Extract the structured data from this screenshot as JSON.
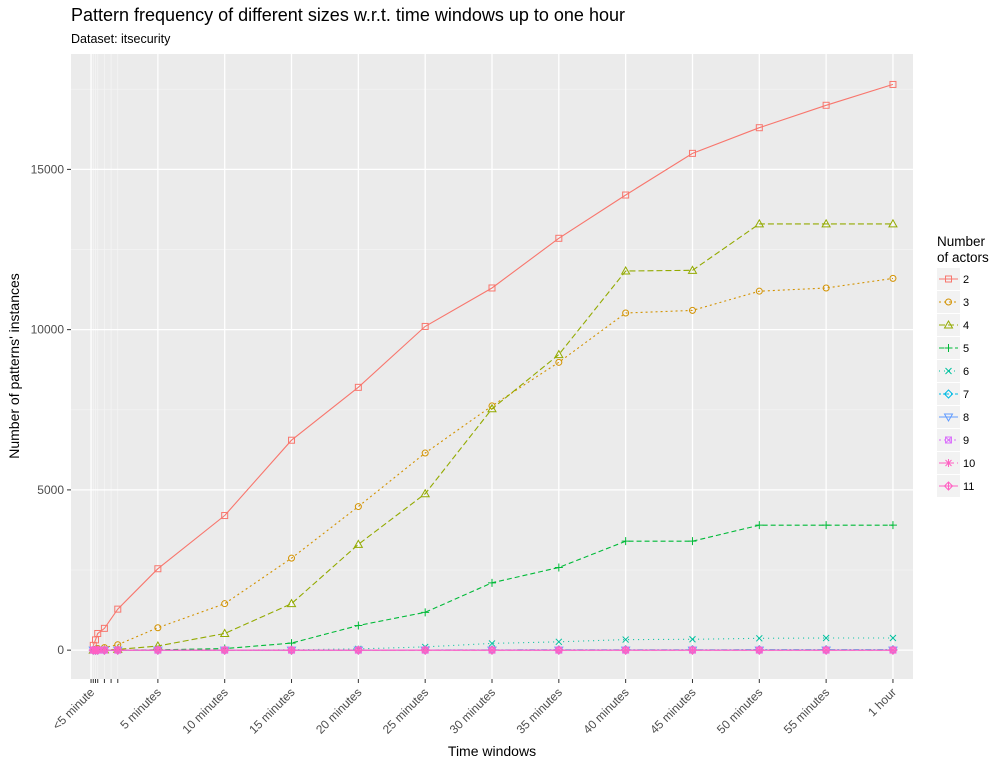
{
  "chart_data": {
    "type": "line",
    "title": "Pattern frequency of different sizes w.r.t. time windows up to one hour",
    "subtitle": "Dataset: itsecurity",
    "xlabel": "Time windows",
    "ylabel": "Number of patterns' instances",
    "x_unit": "minutes",
    "xlim": [
      -1.5,
      61.5
    ],
    "ylim": [
      -900,
      18600
    ],
    "x_ticks": [
      {
        "x": 0,
        "label": "<5 minute"
      },
      {
        "x": 5,
        "label": "5 minutes"
      },
      {
        "x": 10,
        "label": "10 minutes"
      },
      {
        "x": 15,
        "label": "15 minutes"
      },
      {
        "x": 20,
        "label": "20 minutes"
      },
      {
        "x": 25,
        "label": "25 minutes"
      },
      {
        "x": 30,
        "label": "30 minutes"
      },
      {
        "x": 35,
        "label": "35 minutes"
      },
      {
        "x": 40,
        "label": "40 minutes"
      },
      {
        "x": 45,
        "label": "45 minutes"
      },
      {
        "x": 50,
        "label": "50 minutes"
      },
      {
        "x": 55,
        "label": "55 minutes"
      },
      {
        "x": 60,
        "label": "1 hour"
      }
    ],
    "minor_x_ticks": [
      0.167,
      0.333,
      0.5,
      1,
      1.5,
      2
    ],
    "y_ticks": [
      {
        "y": 0,
        "label": "0"
      },
      {
        "y": 5000,
        "label": "5000"
      },
      {
        "y": 10000,
        "label": "10000"
      },
      {
        "y": 15000,
        "label": "15000"
      }
    ],
    "legend_title_lines": [
      "Number",
      "of actors"
    ],
    "legend_position": "right",
    "grid": true,
    "x": [
      0.167,
      0.333,
      0.5,
      1,
      2,
      5,
      10,
      15,
      20,
      25,
      30,
      35,
      40,
      45,
      50,
      55,
      60
    ],
    "series": [
      {
        "name": "2",
        "color": "#F8766D",
        "shape": "square",
        "dash": "solid",
        "values": [
          150,
          320,
          520,
          680,
          1280,
          2540,
          4200,
          6550,
          8200,
          10100,
          11300,
          12850,
          14200,
          15500,
          16300,
          17000,
          17650
        ]
      },
      {
        "name": "3",
        "color": "#D39200",
        "shape": "circle",
        "dash": "2,3",
        "values": [
          15,
          30,
          50,
          80,
          170,
          700,
          1450,
          2870,
          4480,
          6150,
          7620,
          8980,
          10520,
          10600,
          11200,
          11300,
          11600
        ]
      },
      {
        "name": "4",
        "color": "#93AA00",
        "shape": "triangle",
        "dash": "6,3",
        "values": [
          2,
          4,
          8,
          10,
          25,
          130,
          520,
          1450,
          3300,
          4880,
          7530,
          9220,
          11830,
          11850,
          13300,
          13300,
          13300
        ]
      },
      {
        "name": "5",
        "color": "#00BA38",
        "shape": "plus",
        "dash": "5,3",
        "values": [
          0,
          0,
          1,
          1,
          3,
          10,
          50,
          220,
          770,
          1180,
          2100,
          2580,
          3400,
          3400,
          3900,
          3900,
          3900
        ]
      },
      {
        "name": "6",
        "color": "#00C19F",
        "shape": "cross",
        "dash": "1,4",
        "values": [
          0,
          0,
          0,
          0,
          0,
          1,
          3,
          10,
          40,
          100,
          210,
          260,
          330,
          340,
          370,
          380,
          380
        ]
      },
      {
        "name": "7",
        "color": "#00B9E3",
        "shape": "diamond",
        "dash": "2,2,6,2",
        "values": [
          0,
          0,
          0,
          0,
          0,
          0,
          0,
          1,
          2,
          4,
          8,
          10,
          12,
          12,
          14,
          14,
          14
        ]
      },
      {
        "name": "8",
        "color": "#619CFF",
        "shape": "triangle-down",
        "dash": "solid",
        "values": [
          0,
          0,
          0,
          0,
          0,
          0,
          0,
          0,
          0,
          1,
          1,
          1,
          2,
          2,
          2,
          2,
          2
        ]
      },
      {
        "name": "9",
        "color": "#DB72FB",
        "shape": "square-cross",
        "dash": "2,3",
        "values": [
          0,
          0,
          0,
          0,
          0,
          0,
          0,
          0,
          0,
          0,
          0,
          0,
          1,
          1,
          1,
          1,
          1
        ]
      },
      {
        "name": "10",
        "color": "#FF61C3",
        "shape": "asterisk",
        "dash": "6,3",
        "values": [
          0,
          0,
          0,
          0,
          0,
          0,
          0,
          0,
          0,
          0,
          0,
          0,
          0,
          0,
          0,
          0,
          0
        ]
      },
      {
        "name": "11",
        "color": "#FF61C3",
        "shape": "diamond-plus",
        "dash": "solid",
        "values": [
          0,
          0,
          0,
          0,
          0,
          0,
          0,
          0,
          0,
          0,
          0,
          0,
          0,
          0,
          0,
          0,
          0
        ]
      }
    ]
  }
}
